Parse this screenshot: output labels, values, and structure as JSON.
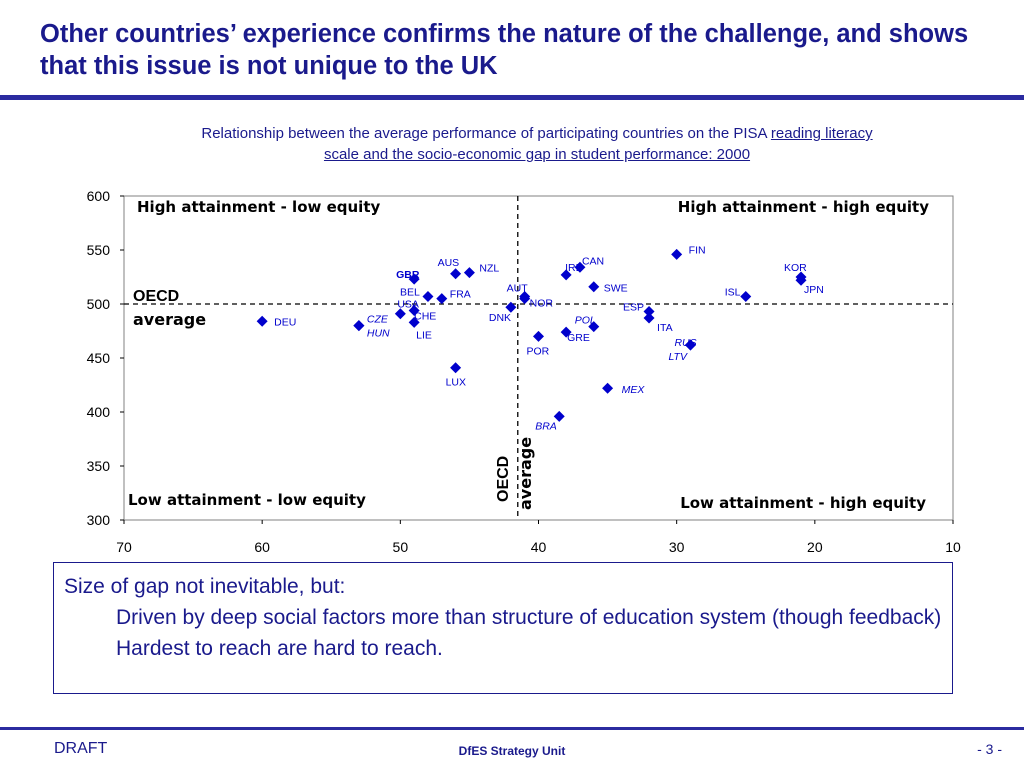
{
  "slide": {
    "title": "Other countries’ experience confirms the nature of the challenge, and shows that this issue is not unique to the UK",
    "caption_plain": "Relationship between the average performance of participating countries  on the PISA ",
    "caption_underlined": "reading literacy scale and the socio-economic gap in student performance: 2000"
  },
  "chart_data": {
    "type": "scatter",
    "x_reversed": true,
    "xlim": [
      70,
      10
    ],
    "ylim": [
      300,
      600
    ],
    "x_ticks": [
      70,
      60,
      50,
      40,
      30,
      20,
      10
    ],
    "y_ticks": [
      300,
      350,
      400,
      450,
      500,
      550,
      600
    ],
    "oecd_average_x": 41.5,
    "oecd_average_y": 500,
    "oecd_label_y": "OECD average",
    "oecd_label_x": "OECD average",
    "quadrant_labels": {
      "top_left": "High attainment - low equity",
      "top_right": "High attainment - high equity",
      "bottom_left": "Low attainment - low equity",
      "bottom_right": "Low attainment - high equity"
    },
    "marker_color": "#0000cc",
    "points": [
      {
        "label": "DEU",
        "x": 60,
        "y": 484
      },
      {
        "label": "CZE",
        "x": 53,
        "y": 480,
        "italic": true
      },
      {
        "label": "HUN",
        "x": 53,
        "y": 480,
        "italic": true
      },
      {
        "label": "USA",
        "x": 50,
        "y": 491
      },
      {
        "label": "CHE",
        "x": 49,
        "y": 494
      },
      {
        "label": "LIE",
        "x": 49,
        "y": 483
      },
      {
        "label": "GBR",
        "x": 49,
        "y": 523,
        "bold": true
      },
      {
        "label": "BEL",
        "x": 48,
        "y": 507
      },
      {
        "label": "FRA",
        "x": 47,
        "y": 505
      },
      {
        "label": "AUS",
        "x": 46,
        "y": 528
      },
      {
        "label": "NZL",
        "x": 45,
        "y": 529
      },
      {
        "label": "LUX",
        "x": 46,
        "y": 441
      },
      {
        "label": "DNK",
        "x": 42,
        "y": 497
      },
      {
        "label": "AUT",
        "x": 41,
        "y": 507
      },
      {
        "label": "NOR",
        "x": 41,
        "y": 505
      },
      {
        "label": "POR",
        "x": 40,
        "y": 470
      },
      {
        "label": "BRA",
        "x": 38.5,
        "y": 396,
        "italic": true
      },
      {
        "label": "IRL",
        "x": 38,
        "y": 527
      },
      {
        "label": "GRE",
        "x": 38,
        "y": 474
      },
      {
        "label": "CAN",
        "x": 37,
        "y": 534
      },
      {
        "label": "SWE",
        "x": 36,
        "y": 516
      },
      {
        "label": "POL",
        "x": 36,
        "y": 479,
        "italic": true
      },
      {
        "label": "MEX",
        "x": 35,
        "y": 422,
        "italic": true
      },
      {
        "label": "ESP",
        "x": 32,
        "y": 493
      },
      {
        "label": "ITA",
        "x": 32,
        "y": 487
      },
      {
        "label": "RUS",
        "x": 29,
        "y": 462,
        "italic": true
      },
      {
        "label": "LTV",
        "x": 29,
        "y": 462,
        "italic": true
      },
      {
        "label": "FIN",
        "x": 30,
        "y": 546
      },
      {
        "label": "ISL",
        "x": 25,
        "y": 507
      },
      {
        "label": "KOR",
        "x": 21,
        "y": 525
      },
      {
        "label": "JPN",
        "x": 21,
        "y": 522
      }
    ]
  },
  "takeaways": {
    "line1": "Size of gap not inevitable, but:",
    "line2": "Driven by deep social factors more than structure of education system (though feedback)",
    "line3": "Hardest to reach are hard to reach."
  },
  "footer": {
    "draft": "DRAFT",
    "center": "DfES Strategy Unit",
    "page": "- 3 -"
  }
}
